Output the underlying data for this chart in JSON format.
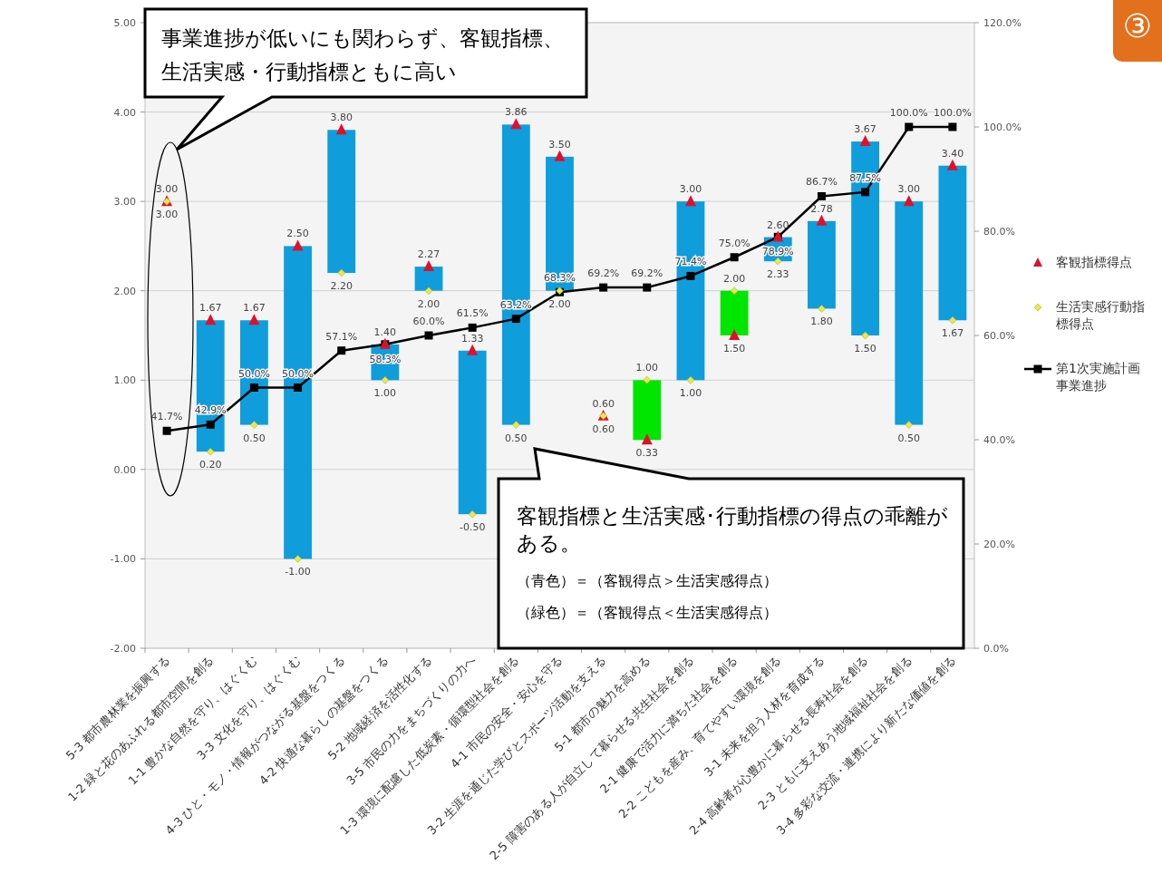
{
  "chart_data": {
    "type": "bar",
    "categories": [
      "5-3 都市農林業を振興する",
      "1-2 緑と花のあふれる都市空間を創る",
      "1-1 豊かな自然を守り、はぐくむ",
      "3-3 文化を守り、はぐくむ",
      "4-3 ひと・モノ・情報がつながる基盤をつくる",
      "4-2 快適な暮らしの基盤をつくる",
      "5-2 地域経済を活性化する",
      "3-5 市民の力をまちづくりの力へ",
      "1-3 環境に配慮した低炭素・循環型社会を創る",
      "4-1 市民の安全・安心を守る",
      "3-2 生涯を通じた学びとスポーツ活動を支える",
      "5-1 都市の魅力を高める",
      "2-5 障害のある人が自立して暮らせる共生社会を創る",
      "2-1 健康で活力に満ちた社会を創る",
      "2-2 こどもを産み、育てやすい環境を創る",
      "3-1 未来を担う人材を育成する",
      "2-4 高齢者が心豊かに暮らせる長寿社会を創る",
      "2-3 ともに支えあう地域福祉社会を創る",
      "3-4 多彩な交流・連携により新たな価値を創る"
    ],
    "series": [
      {
        "base": [
          null,
          0.2,
          0.5,
          -1.0,
          2.2,
          1.0,
          2.0,
          -0.5,
          0.5,
          2.0,
          null,
          0.33,
          1.0,
          1.5,
          2.33,
          1.8,
          1.5,
          0.5,
          1.67
        ],
        "values": [
          null,
          1.47,
          1.17,
          3.5,
          1.6,
          0.4,
          0.27,
          1.83,
          3.36,
          1.5,
          null,
          0.67,
          2.0,
          0.5,
          0.27,
          0.98,
          2.17,
          2.5,
          1.73
        ],
        "colors": [
          null,
          "#0f9ddc",
          "#0f9ddc",
          "#0f9ddc",
          "#0f9ddc",
          "#0f9ddc",
          "#0f9ddc",
          "#0f9ddc",
          "#0f9ddc",
          "#0f9ddc",
          null,
          "#00e600",
          "#0f9ddc",
          "#00e600",
          "#0f9ddc",
          "#0f9ddc",
          "#0f9ddc",
          "#0f9ddc",
          "#0f9ddc"
        ]
      },
      {
        "type": "scatter",
        "name": "客観指標得点",
        "marker": "triangle",
        "color": "#e0102a",
        "values": [
          3.0,
          1.67,
          1.67,
          2.5,
          3.8,
          1.4,
          2.27,
          1.33,
          3.86,
          3.5,
          0.6,
          0.33,
          3.0,
          1.5,
          2.6,
          2.78,
          3.67,
          3.0,
          3.4
        ],
        "value_labels": [
          "3.00",
          "1.67",
          "1.67",
          "2.50",
          "3.80",
          "1.40",
          "2.27",
          "1.33",
          "3.86",
          "3.50",
          "0.60",
          "0.33",
          "3.00",
          "1.50",
          "2.60",
          "2.78",
          "3.67",
          "3.00",
          "3.40"
        ]
      },
      {
        "type": "scatter",
        "name": "生活実感行動指標得点",
        "marker": "diamond",
        "color": "#e6e65a",
        "values": [
          3.0,
          0.2,
          0.5,
          -1.0,
          2.2,
          1.0,
          2.0,
          -0.5,
          0.5,
          2.0,
          0.6,
          1.0,
          1.0,
          2.0,
          2.33,
          1.8,
          1.5,
          0.5,
          1.67
        ],
        "value_labels": [
          "3.00",
          "0.20",
          "0.50",
          "-1.00",
          "2.20",
          "1.00",
          "2.00",
          "-0.50",
          "0.50",
          "2.00",
          "0.60",
          "1.00",
          "1.00",
          "2.00",
          "2.33",
          "1.80",
          "1.50",
          "0.50",
          "1.67"
        ]
      },
      {
        "type": "line",
        "axis": "y2",
        "name": "第1次実施計画事業進捗",
        "marker": "square",
        "color": "#000000",
        "values": [
          41.7,
          42.9,
          50.0,
          50.0,
          57.1,
          58.3,
          60.0,
          61.5,
          63.2,
          68.3,
          69.2,
          69.2,
          71.4,
          75.0,
          78.9,
          86.7,
          87.5,
          100.0,
          100.0
        ],
        "value_labels": [
          "41.7%",
          "42.9%",
          "50.0%",
          "50.0%",
          "57.1%",
          "58.3%",
          "60.0%",
          "61.5%",
          "63.2%",
          "68.3%",
          "69.2%",
          "69.2%",
          "71.4%",
          "75.0%",
          "78.9%",
          "86.7%",
          "87.5%",
          "100.0%",
          "100.0%"
        ]
      }
    ],
    "ylim": [
      -2,
      5
    ],
    "yticks": [
      {
        "value": -2,
        "label": "-2.00"
      },
      {
        "value": -1,
        "label": "-1.00"
      },
      {
        "value": 0,
        "label": "0.00"
      },
      {
        "value": 1,
        "label": "1.00"
      },
      {
        "value": 2,
        "label": "2.00"
      },
      {
        "value": 3,
        "label": "3.00"
      },
      {
        "value": 4,
        "label": "4.00"
      },
      {
        "value": 5,
        "label": "5.00"
      }
    ],
    "y2lim": [
      0,
      120
    ],
    "y2ticks": [
      {
        "value": 0,
        "label": "0.0%"
      },
      {
        "value": 20,
        "label": "20.0%"
      },
      {
        "value": 40,
        "label": "40.0%"
      },
      {
        "value": 60,
        "label": "60.0%"
      },
      {
        "value": 80,
        "label": "80.0%"
      },
      {
        "value": 100,
        "label": "100.0%"
      },
      {
        "value": 120,
        "label": "120.0%"
      }
    ],
    "grid": "y",
    "legend": "right",
    "annotations": [
      "事業進捗が低いにも関わらず、客観指標、生活実感・行動指標ともに高い",
      "客観指標と生活実感･行動指標の得点の乖離がある。",
      "（青色）＝（客観得点＞生活実感得点）",
      "（緑色）＝（客観得点＜生活実感得点）",
      "③"
    ]
  }
}
